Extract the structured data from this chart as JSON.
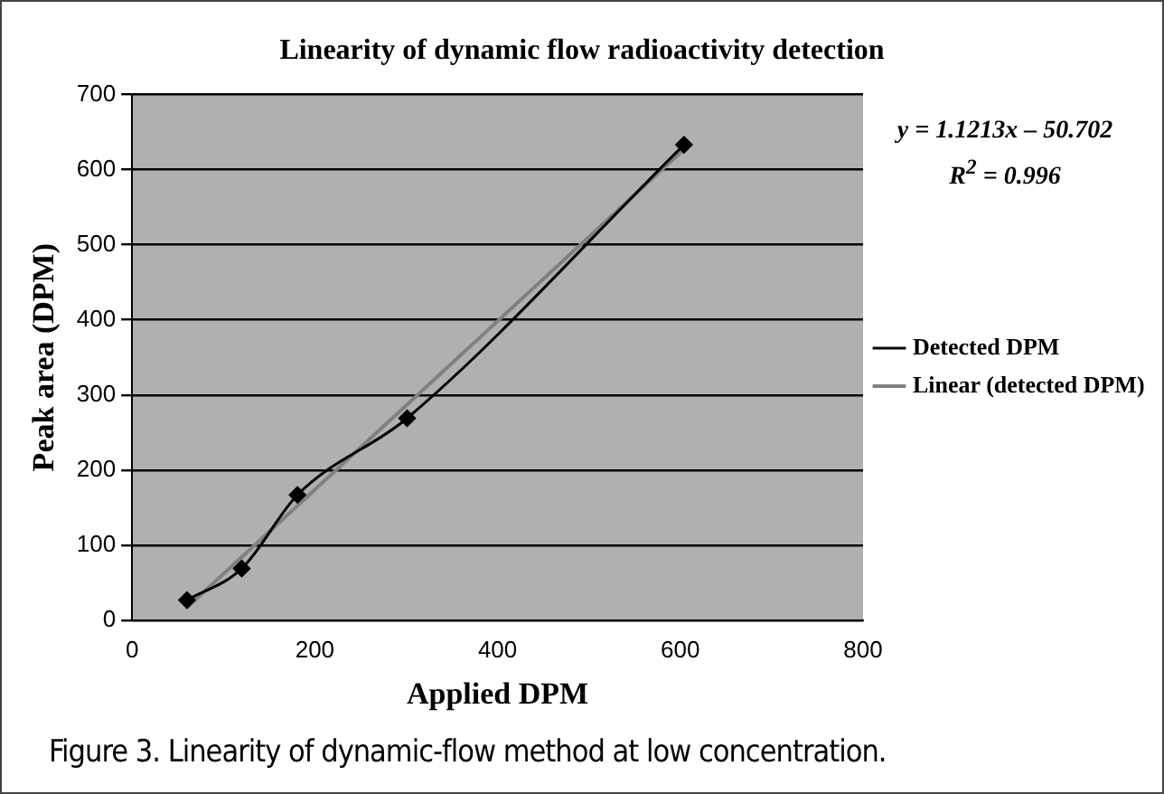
{
  "chart_data": {
    "type": "line",
    "title": "Linearity of dynamic flow radioactivity detection",
    "xlabel": "Applied DPM",
    "ylabel": "Peak area (DPM)",
    "annotations": [
      "y = 1.1213x – 50.702",
      "R$^{2}$ = 0.996",
      "Figure 3. Linearity of dynamic-flow method at low concentration."
    ],
    "series": [
      {
        "name": "Detected DPM",
        "color": "#000000",
        "x": [
          60,
          120,
          181,
          301,
          604
        ],
        "values": [
          27,
          69,
          167,
          269,
          633
        ],
        "marker": "diamond"
      },
      {
        "name": "Linear (detected DPM)",
        "color": "#808080",
        "x": [
          60,
          604
        ],
        "values": [
          17,
          627
        ],
        "marker": "none"
      }
    ],
    "xlim": [
      0,
      800
    ],
    "xticks": [
      0,
      200,
      400,
      600,
      800
    ],
    "ylim": [
      0,
      700
    ],
    "yticks": [
      0,
      100,
      200,
      300,
      400,
      500,
      600,
      700
    ],
    "grid": "y",
    "legend": "right"
  }
}
